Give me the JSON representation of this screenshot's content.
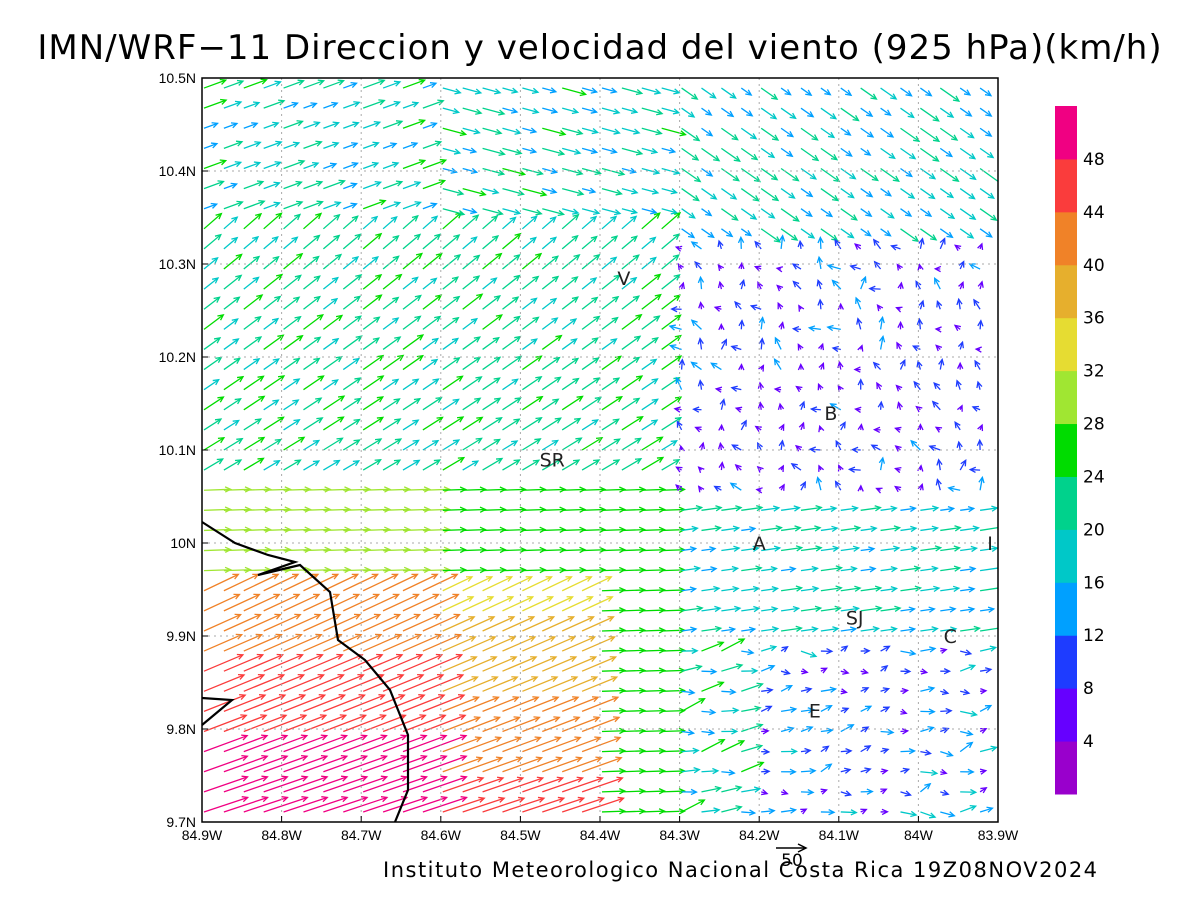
{
  "title": "IMN/WRF−11 Direccion y velocidad del viento (925 hPa)(km/h)",
  "footer": "Instituto Meteorologico Nacional Costa Rica 19Z08NOV2024",
  "reference_vector": {
    "label": "50",
    "speed": 50
  },
  "map": {
    "lon_range": [
      -84.9,
      -83.9
    ],
    "lat_range": [
      9.7,
      10.5
    ],
    "grid": true,
    "x_tick_labels": [
      "84.9W",
      "84.8W",
      "84.7W",
      "84.6W",
      "84.5W",
      "84.4W",
      "84.3W",
      "84.2W",
      "84.1W",
      "84W",
      "83.9W"
    ],
    "y_tick_labels": [
      "9.7N",
      "9.8N",
      "9.9N",
      "10N",
      "10.1N",
      "10.2N",
      "10.3N",
      "10.4N",
      "10.5N"
    ],
    "places": [
      {
        "label": "V",
        "lon": -84.37,
        "lat": 10.285
      },
      {
        "label": "B",
        "lon": -84.11,
        "lat": 10.14
      },
      {
        "label": "SR",
        "lon": -84.46,
        "lat": 10.09
      },
      {
        "label": "A",
        "lon": -84.2,
        "lat": 10.0
      },
      {
        "label": "I",
        "lon": -83.91,
        "lat": 10.0
      },
      {
        "label": "SJ",
        "lon": -84.08,
        "lat": 9.92
      },
      {
        "label": "C",
        "lon": -83.96,
        "lat": 9.9
      },
      {
        "label": "E",
        "lon": -84.13,
        "lat": 9.82
      }
    ]
  },
  "colorbar": {
    "labels": [
      "4",
      "8",
      "12",
      "16",
      "20",
      "24",
      "28",
      "32",
      "36",
      "40",
      "44",
      "48"
    ],
    "colors": [
      "#9900cc",
      "#6600ff",
      "#1e3cff",
      "#00a0ff",
      "#00c8c8",
      "#00d28c",
      "#00dc00",
      "#a0e632",
      "#e6dc32",
      "#e6af2d",
      "#f08228",
      "#fa3c3c",
      "#f00082"
    ]
  },
  "chart_data": {
    "type": "vector_field",
    "title": "IMN/WRF−11 Direccion y velocidad del viento (925 hPa)(km/h)",
    "units": "km/h",
    "level": "925 hPa",
    "valid_time": "19Z08NOV2024",
    "regions": [
      {
        "area": "western lowlands south of 9.95N",
        "direction": "from WSW",
        "speed_range": [
          32,
          50
        ]
      },
      {
        "area": "west, 10.0N-10.45N",
        "direction": "from W/SW",
        "speed_range": [
          16,
          28
        ]
      },
      {
        "area": "central 84.6W-84.3W, 9.95N-10.05N",
        "direction": "from W",
        "speed_range": [
          20,
          30
        ]
      },
      {
        "area": "north-east, 10.3N-10.5N",
        "direction": "from NW",
        "speed_range": [
          12,
          28
        ]
      },
      {
        "area": "around 84.1W 10.15N",
        "direction": "variable",
        "speed_range": [
          2,
          8
        ]
      },
      {
        "area": "south-east, 9.75N-9.95N",
        "direction": "from W",
        "speed_range": [
          8,
          20
        ]
      }
    ]
  }
}
